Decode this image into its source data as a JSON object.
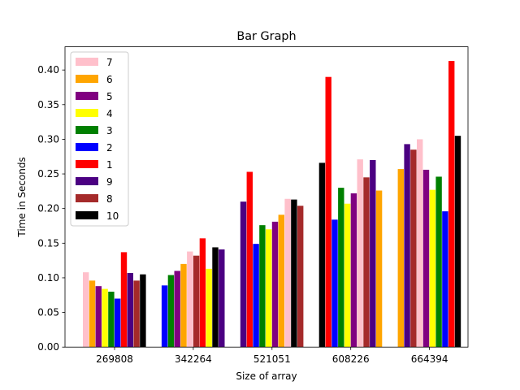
{
  "chart_data": {
    "type": "bar",
    "title": "Bar Graph",
    "xlabel": "Size of array",
    "ylabel": "Time in Seconds",
    "ylim": [
      0,
      0.4335
    ],
    "yticks": [
      "0.00",
      "0.05",
      "0.10",
      "0.15",
      "0.20",
      "0.25",
      "0.30",
      "0.35",
      "0.40"
    ],
    "categories": [
      "269808",
      "342264",
      "521051",
      "608226",
      "664394"
    ],
    "legend_position": "top-left",
    "grid": false,
    "series": [
      {
        "name": "7",
        "color": "#ffc0cb",
        "values": [
          0.108,
          0.138,
          0.214,
          0.271,
          0.3
        ]
      },
      {
        "name": "6",
        "color": "#ffa500",
        "values": [
          0.096,
          0.12,
          0.191,
          0.226,
          0.257
        ]
      },
      {
        "name": "5",
        "color": "#800080",
        "values": [
          0.088,
          0.11,
          0.181,
          0.222,
          0.256
        ]
      },
      {
        "name": "4",
        "color": "#ffff00",
        "values": [
          0.084,
          0.113,
          0.17,
          0.207,
          0.227
        ]
      },
      {
        "name": "3",
        "color": "#008000",
        "values": [
          0.08,
          0.104,
          0.176,
          0.23,
          0.246
        ]
      },
      {
        "name": "2",
        "color": "#0000ff",
        "values": [
          0.07,
          0.089,
          0.149,
          0.184,
          0.196
        ]
      },
      {
        "name": "1",
        "color": "#ff0000",
        "values": [
          0.137,
          0.157,
          0.253,
          0.39,
          0.413
        ]
      },
      {
        "name": "9",
        "color": "#4b0082",
        "values": [
          0.107,
          0.141,
          0.21,
          0.27,
          0.293
        ]
      },
      {
        "name": "8",
        "color": "#a52a2a",
        "values": [
          0.096,
          0.132,
          0.204,
          0.245,
          0.285
        ]
      },
      {
        "name": "10",
        "color": "#000000",
        "values": [
          0.105,
          0.144,
          0.213,
          0.266,
          0.305
        ]
      }
    ],
    "bar_order": [
      [
        "7",
        "6",
        "5",
        "4",
        "3",
        "2",
        "1",
        "9",
        "8",
        "10"
      ],
      [
        "2",
        "3",
        "5",
        "6",
        "7",
        "8",
        "1",
        "4",
        "10",
        "9"
      ],
      [
        "9",
        "1",
        "2",
        "3",
        "4",
        "5",
        "6",
        "7",
        "10",
        "8"
      ],
      [
        "10",
        "1",
        "2",
        "3",
        "4",
        "5",
        "7",
        "8",
        "9",
        "6"
      ],
      [
        "6",
        "9",
        "8",
        "7",
        "5",
        "4",
        "3",
        "2",
        "1",
        "10"
      ]
    ]
  }
}
